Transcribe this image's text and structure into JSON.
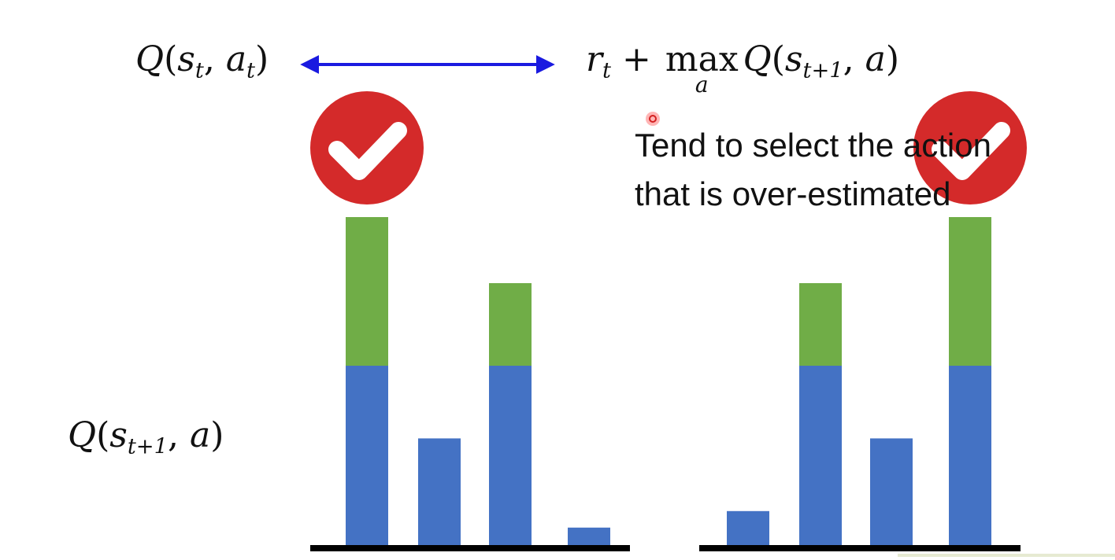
{
  "formula": {
    "left": {
      "q": "Q",
      "open": "(",
      "s": "s",
      "s_sub": "t",
      "comma": ",",
      "a": "a",
      "a_sub": "t",
      "close": ")"
    },
    "right": {
      "r": "r",
      "r_sub": "t",
      "plus": "+",
      "max": "max",
      "max_sub": "a",
      "q": "Q",
      "open": "(",
      "s": "s",
      "s_sub": "t+1",
      "comma": ",",
      "a": "a",
      "close": ")"
    }
  },
  "note": {
    "line1": "Tend to select the action",
    "line2": "that is over-estimated"
  },
  "y_label": {
    "q": "Q",
    "open": "(",
    "s": "s",
    "s_sub": "t+1",
    "comma": ",",
    "a": "a",
    "close": ")"
  },
  "colors": {
    "arrow": "#1a1ae0",
    "true_value": "#4472c4",
    "over_estimate": "#70ad47",
    "check_badge": "#d42a2a",
    "axis": "#000000"
  },
  "icons": {
    "check": "check-circle-icon"
  },
  "chart_data": [
    {
      "type": "bar",
      "stacked": true,
      "series": [
        {
          "role": "base",
          "values": [
            5.5,
            3.3,
            5.5,
            0.6
          ]
        },
        {
          "role": "over-estimate",
          "values": [
            4.5,
            0,
            2.5,
            0
          ]
        }
      ],
      "selected_index": 0,
      "ylim": [
        0,
        10
      ]
    },
    {
      "type": "bar",
      "stacked": true,
      "series": [
        {
          "role": "base",
          "values": [
            1.1,
            5.5,
            3.3,
            5.5
          ]
        },
        {
          "role": "over-estimate",
          "values": [
            0,
            2.5,
            0,
            4.5
          ]
        }
      ],
      "selected_index": 3,
      "ylim": [
        0,
        10
      ]
    }
  ]
}
